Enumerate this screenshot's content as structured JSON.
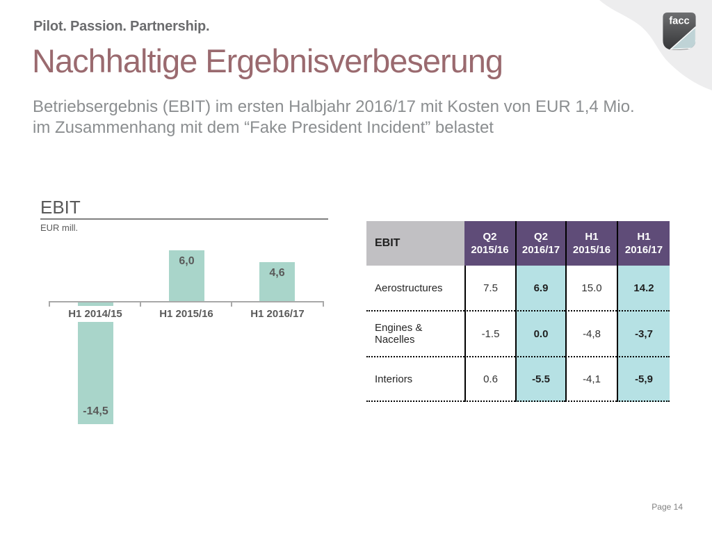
{
  "slide": {
    "tagline": "Pilot. Passion. Partnership.",
    "title": "Nachhaltige Ergebnisverbeserung",
    "subtitle": "Betriebsergebnis (EBIT) im ersten Halbjahr 2016/17 mit Kosten von EUR 1,4 Mio.\nim Zusammenhang mit dem “Fake President Incident” belastet",
    "logo_text": "facc",
    "page_label": "Page 14"
  },
  "chart_data": {
    "type": "bar",
    "title": "EBIT",
    "ylabel": "EUR mill.",
    "categories": [
      "H1 2014/15",
      "H1 2015/16",
      "H1 2016/17"
    ],
    "values": [
      -14.5,
      6.0,
      4.6
    ],
    "value_labels": [
      "-14,5",
      "6,0",
      "4,6"
    ],
    "bar_color": "#a9d5ca",
    "baseline": 0,
    "grid": false,
    "legend": false
  },
  "table": {
    "header": [
      "EBIT",
      "Q2\n2015/16",
      "Q2\n2016/17",
      "H1\n2015/16",
      "H1\n2016/17"
    ],
    "rows": [
      {
        "label": "Aerostructures",
        "values": [
          "7.5",
          "6.9",
          "15.0",
          "14.2"
        ]
      },
      {
        "label": "Engines &\nNacelles",
        "values": [
          "-1.5",
          "0.0",
          "-4,8",
          "-3,7"
        ]
      },
      {
        "label": "Interiors",
        "values": [
          "0.6",
          "-5.5",
          "-4,1",
          "-5,9"
        ]
      }
    ],
    "highlight_columns": [
      2,
      4
    ],
    "header_color": "#5f4c78",
    "highlight_color": "#b6e1e4",
    "label_header_color": "#c1c0c3"
  },
  "colors": {
    "title": "#9a6a6f",
    "subtitle": "#8b8e90",
    "bar_teal": "#a9d5ca",
    "corner_gray": "#ededee"
  }
}
